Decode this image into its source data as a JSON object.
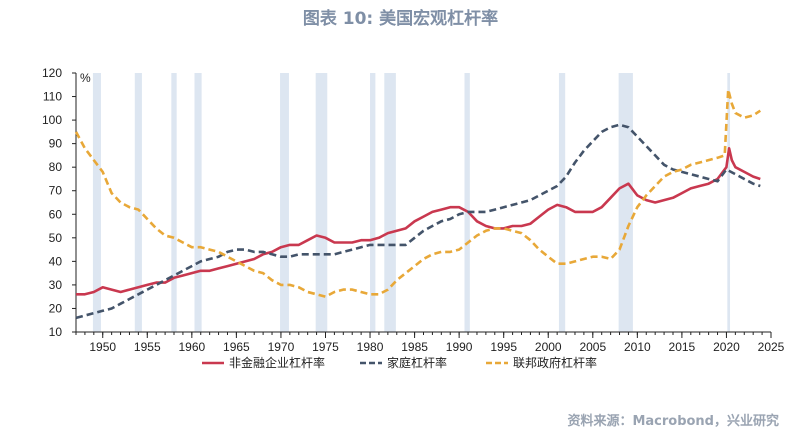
{
  "title": "图表 10: 美国宏观杠杆率",
  "source": "资料来源：Macrobond，兴业研究",
  "chart_data": {
    "type": "line",
    "unit_label": "%",
    "ylim": [
      10,
      120
    ],
    "y_ticks": [
      10,
      20,
      30,
      40,
      50,
      60,
      70,
      80,
      90,
      100,
      110,
      120
    ],
    "xlim": [
      1947,
      2025
    ],
    "x_ticks": [
      1950,
      1955,
      1960,
      1965,
      1970,
      1975,
      1980,
      1985,
      1990,
      1995,
      2000,
      2005,
      2010,
      2015,
      2020,
      2025
    ],
    "recession_bands": [
      [
        1948.9,
        1949.8
      ],
      [
        1953.6,
        1954.4
      ],
      [
        1957.7,
        1958.3
      ],
      [
        1960.3,
        1961.1
      ],
      [
        1969.9,
        1970.9
      ],
      [
        1973.9,
        1975.2
      ],
      [
        1980.0,
        1980.6
      ],
      [
        1981.6,
        1982.9
      ],
      [
        1990.6,
        1991.2
      ],
      [
        2001.2,
        2001.9
      ],
      [
        2007.9,
        2009.5
      ],
      [
        2020.1,
        2020.4
      ]
    ],
    "legend_position": "bottom",
    "series": [
      {
        "name": "非金融企业杠杆率",
        "color": "#c9384f",
        "dash": "solid",
        "points": [
          [
            1947,
            26
          ],
          [
            1948,
            26
          ],
          [
            1949,
            27
          ],
          [
            1950,
            29
          ],
          [
            1951,
            28
          ],
          [
            1952,
            27
          ],
          [
            1953,
            28
          ],
          [
            1954,
            29
          ],
          [
            1955,
            30
          ],
          [
            1956,
            31
          ],
          [
            1957,
            31
          ],
          [
            1958,
            33
          ],
          [
            1959,
            34
          ],
          [
            1960,
            35
          ],
          [
            1961,
            36
          ],
          [
            1962,
            36
          ],
          [
            1963,
            37
          ],
          [
            1964,
            38
          ],
          [
            1965,
            39
          ],
          [
            1966,
            40
          ],
          [
            1967,
            41
          ],
          [
            1968,
            43
          ],
          [
            1969,
            44
          ],
          [
            1970,
            46
          ],
          [
            1971,
            47
          ],
          [
            1972,
            47
          ],
          [
            1973,
            49
          ],
          [
            1974,
            51
          ],
          [
            1975,
            50
          ],
          [
            1976,
            48
          ],
          [
            1977,
            48
          ],
          [
            1978,
            48
          ],
          [
            1979,
            49
          ],
          [
            1980,
            49
          ],
          [
            1981,
            50
          ],
          [
            1982,
            52
          ],
          [
            1983,
            53
          ],
          [
            1984,
            54
          ],
          [
            1985,
            57
          ],
          [
            1986,
            59
          ],
          [
            1987,
            61
          ],
          [
            1988,
            62
          ],
          [
            1989,
            63
          ],
          [
            1990,
            63
          ],
          [
            1991,
            61
          ],
          [
            1992,
            57
          ],
          [
            1993,
            55
          ],
          [
            1994,
            54
          ],
          [
            1995,
            54
          ],
          [
            1996,
            55
          ],
          [
            1997,
            55
          ],
          [
            1998,
            56
          ],
          [
            1999,
            59
          ],
          [
            2000,
            62
          ],
          [
            2001,
            64
          ],
          [
            2002,
            63
          ],
          [
            2003,
            61
          ],
          [
            2004,
            61
          ],
          [
            2005,
            61
          ],
          [
            2006,
            63
          ],
          [
            2007,
            67
          ],
          [
            2008,
            71
          ],
          [
            2009,
            73
          ],
          [
            2010,
            68
          ],
          [
            2011,
            66
          ],
          [
            2012,
            65
          ],
          [
            2013,
            66
          ],
          [
            2014,
            67
          ],
          [
            2015,
            69
          ],
          [
            2016,
            71
          ],
          [
            2017,
            72
          ],
          [
            2018,
            73
          ],
          [
            2019,
            75
          ],
          [
            2020,
            80
          ],
          [
            2020.3,
            88
          ],
          [
            2020.6,
            83
          ],
          [
            2021,
            80
          ],
          [
            2022,
            78
          ],
          [
            2023,
            76
          ],
          [
            2023.8,
            75
          ]
        ]
      },
      {
        "name": "家庭杠杆率",
        "color": "#44546a",
        "dash": "dashed",
        "points": [
          [
            1947,
            16
          ],
          [
            1948,
            17
          ],
          [
            1949,
            18
          ],
          [
            1950,
            19
          ],
          [
            1951,
            20
          ],
          [
            1952,
            22
          ],
          [
            1953,
            24
          ],
          [
            1954,
            26
          ],
          [
            1955,
            28
          ],
          [
            1956,
            30
          ],
          [
            1957,
            32
          ],
          [
            1958,
            34
          ],
          [
            1959,
            36
          ],
          [
            1960,
            38
          ],
          [
            1961,
            40
          ],
          [
            1962,
            41
          ],
          [
            1963,
            42
          ],
          [
            1964,
            44
          ],
          [
            1965,
            45
          ],
          [
            1966,
            45
          ],
          [
            1967,
            44
          ],
          [
            1968,
            44
          ],
          [
            1969,
            43
          ],
          [
            1970,
            42
          ],
          [
            1971,
            42
          ],
          [
            1972,
            43
          ],
          [
            1973,
            43
          ],
          [
            1974,
            43
          ],
          [
            1975,
            43
          ],
          [
            1976,
            43
          ],
          [
            1977,
            44
          ],
          [
            1978,
            45
          ],
          [
            1979,
            46
          ],
          [
            1980,
            47
          ],
          [
            1981,
            47
          ],
          [
            1982,
            47
          ],
          [
            1983,
            47
          ],
          [
            1984,
            47
          ],
          [
            1985,
            50
          ],
          [
            1986,
            53
          ],
          [
            1987,
            55
          ],
          [
            1988,
            57
          ],
          [
            1989,
            58
          ],
          [
            1990,
            60
          ],
          [
            1991,
            61
          ],
          [
            1992,
            61
          ],
          [
            1993,
            61
          ],
          [
            1994,
            62
          ],
          [
            1995,
            63
          ],
          [
            1996,
            64
          ],
          [
            1997,
            65
          ],
          [
            1998,
            66
          ],
          [
            1999,
            68
          ],
          [
            2000,
            70
          ],
          [
            2001,
            72
          ],
          [
            2002,
            76
          ],
          [
            2003,
            82
          ],
          [
            2004,
            87
          ],
          [
            2005,
            91
          ],
          [
            2006,
            95
          ],
          [
            2007,
            97
          ],
          [
            2008,
            98
          ],
          [
            2009,
            97
          ],
          [
            2010,
            93
          ],
          [
            2011,
            89
          ],
          [
            2012,
            85
          ],
          [
            2013,
            81
          ],
          [
            2014,
            79
          ],
          [
            2015,
            78
          ],
          [
            2016,
            77
          ],
          [
            2017,
            76
          ],
          [
            2018,
            75
          ],
          [
            2019,
            74
          ],
          [
            2020,
            79
          ],
          [
            2021,
            77
          ],
          [
            2022,
            75
          ],
          [
            2023,
            73
          ],
          [
            2023.8,
            72
          ]
        ]
      },
      {
        "name": "联邦政府杠杆率",
        "color": "#e8a838",
        "dash": "dashed",
        "points": [
          [
            1947,
            95
          ],
          [
            1948,
            88
          ],
          [
            1949,
            83
          ],
          [
            1950,
            78
          ],
          [
            1951,
            69
          ],
          [
            1952,
            65
          ],
          [
            1953,
            63
          ],
          [
            1954,
            62
          ],
          [
            1955,
            58
          ],
          [
            1956,
            54
          ],
          [
            1957,
            51
          ],
          [
            1958,
            50
          ],
          [
            1959,
            48
          ],
          [
            1960,
            46
          ],
          [
            1961,
            46
          ],
          [
            1962,
            45
          ],
          [
            1963,
            44
          ],
          [
            1964,
            42
          ],
          [
            1965,
            40
          ],
          [
            1966,
            38
          ],
          [
            1967,
            36
          ],
          [
            1968,
            35
          ],
          [
            1969,
            32
          ],
          [
            1970,
            30
          ],
          [
            1971,
            30
          ],
          [
            1972,
            29
          ],
          [
            1973,
            27
          ],
          [
            1974,
            26
          ],
          [
            1975,
            25
          ],
          [
            1976,
            27
          ],
          [
            1977,
            28
          ],
          [
            1978,
            28
          ],
          [
            1979,
            27
          ],
          [
            1980,
            26
          ],
          [
            1981,
            26
          ],
          [
            1982,
            28
          ],
          [
            1983,
            32
          ],
          [
            1984,
            35
          ],
          [
            1985,
            38
          ],
          [
            1986,
            41
          ],
          [
            1987,
            43
          ],
          [
            1988,
            44
          ],
          [
            1989,
            44
          ],
          [
            1990,
            45
          ],
          [
            1991,
            48
          ],
          [
            1992,
            51
          ],
          [
            1993,
            53
          ],
          [
            1994,
            54
          ],
          [
            1995,
            54
          ],
          [
            1996,
            53
          ],
          [
            1997,
            52
          ],
          [
            1998,
            49
          ],
          [
            1999,
            45
          ],
          [
            2000,
            42
          ],
          [
            2001,
            39
          ],
          [
            2002,
            39
          ],
          [
            2003,
            40
          ],
          [
            2004,
            41
          ],
          [
            2005,
            42
          ],
          [
            2006,
            42
          ],
          [
            2007,
            41
          ],
          [
            2008,
            45
          ],
          [
            2009,
            55
          ],
          [
            2010,
            63
          ],
          [
            2011,
            68
          ],
          [
            2012,
            72
          ],
          [
            2013,
            76
          ],
          [
            2014,
            78
          ],
          [
            2015,
            79
          ],
          [
            2016,
            81
          ],
          [
            2017,
            82
          ],
          [
            2018,
            83
          ],
          [
            2019,
            84
          ],
          [
            2019.8,
            85
          ],
          [
            2020.2,
            113
          ],
          [
            2020.6,
            107
          ],
          [
            2021,
            103
          ],
          [
            2022,
            101
          ],
          [
            2023,
            102
          ],
          [
            2023.8,
            104
          ]
        ]
      }
    ]
  }
}
